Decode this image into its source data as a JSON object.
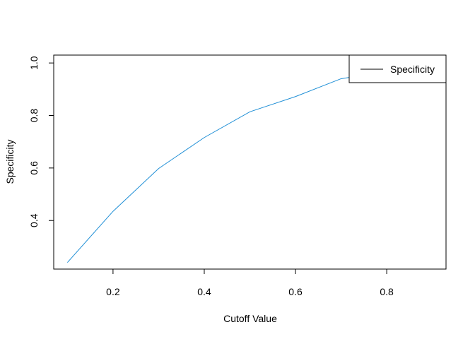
{
  "chart_data": {
    "type": "line",
    "title": "",
    "xlabel": "Cutoff Value",
    "ylabel": "Specificity",
    "xlim": [
      0.07,
      0.93
    ],
    "ylim": [
      0.215,
      1.03
    ],
    "xticks": [
      "0.2",
      "0.4",
      "0.6",
      "0.8"
    ],
    "yticks": [
      "0.4",
      "0.6",
      "0.8",
      "1.0"
    ],
    "grid": false,
    "legend_position": "top-right",
    "series": [
      {
        "name": "Specificity",
        "color": "#1f8fd6",
        "legend_line_color": "#000000",
        "x": [
          0.1,
          0.2,
          0.3,
          0.4,
          0.5,
          0.6,
          0.7,
          0.8,
          0.9
        ],
        "y": [
          0.24,
          0.435,
          0.598,
          0.716,
          0.814,
          0.872,
          0.94,
          0.968,
          0.993
        ]
      }
    ]
  }
}
